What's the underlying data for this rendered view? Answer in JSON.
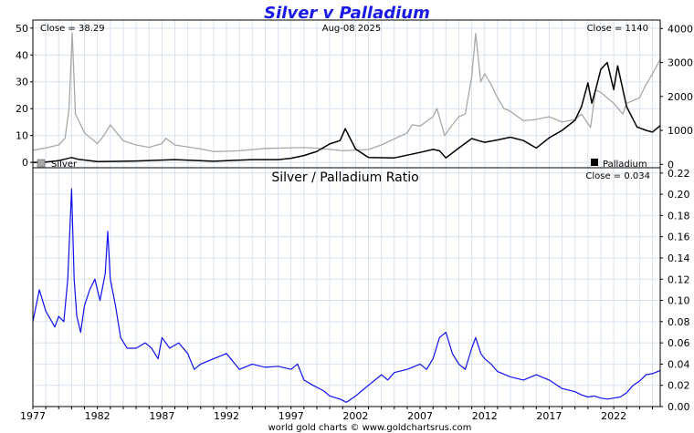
{
  "title": "Silver v Palladium",
  "footer": "world gold charts © www.goldchartsrus.com",
  "colors": {
    "title": "#1a1ae6",
    "silver": "#a8a8a8",
    "palladium": "#000000",
    "ratio": "#1010ee",
    "grid": "#d8e2ef"
  },
  "top_panel": {
    "silver_close_label": "Close = 38.29",
    "date_label": "Aug-08  2025",
    "palladium_close_label": "Close = 1140",
    "legend_silver": "Silver",
    "legend_palladium": "Palladium"
  },
  "bottom_panel": {
    "subtitle": "Silver  /  Palladium Ratio",
    "close_label": "Close = 0.034"
  },
  "chart_data": [
    {
      "type": "line",
      "title": "Silver v Palladium",
      "x_ticks": [
        "1977",
        "1982",
        "1987",
        "1992",
        "1997",
        "2002",
        "2007",
        "2012",
        "2017",
        "2022"
      ],
      "xlim": [
        1977,
        2025.6
      ],
      "y_left": {
        "ticks": [
          0,
          10,
          20,
          30,
          40,
          50
        ],
        "ylim": [
          -2,
          53
        ]
      },
      "y_right": {
        "ticks": [
          0,
          1000,
          2000,
          3000,
          4000
        ],
        "ylim": [
          -100,
          4250
        ]
      },
      "grid": true,
      "legend_placement": "bottom",
      "series": [
        {
          "name": "Silver",
          "axis": "left",
          "x": [
            1977,
            1978,
            1979,
            1979.5,
            1979.8,
            1980.05,
            1980.3,
            1980.6,
            1981,
            1982,
            1982.5,
            1983,
            1983.5,
            1984,
            1985,
            1986,
            1987,
            1987.3,
            1988,
            1990,
            1991,
            1993,
            1995,
            1998,
            1999,
            2001,
            2003,
            2004,
            2006,
            2006.4,
            2007,
            2008,
            2008.3,
            2008.9,
            2009.5,
            2010,
            2010.5,
            2011,
            2011.3,
            2011.7,
            2012,
            2012.5,
            2013,
            2013.5,
            2014,
            2015,
            2016,
            2017,
            2018,
            2019,
            2019.5,
            2020.2,
            2020.6,
            2021,
            2022,
            2022.7,
            2023,
            2024,
            2024.5,
            2025,
            2025.6
          ],
          "values": [
            4.5,
            5.4,
            6.5,
            9,
            20,
            48,
            18,
            15,
            11,
            7,
            10,
            14,
            11,
            8,
            6.5,
            5.6,
            7,
            9,
            6.5,
            5,
            4,
            4.3,
            5.2,
            5.5,
            5.3,
            4.3,
            4.8,
            6.5,
            11,
            14,
            13.5,
            17,
            20,
            10,
            14,
            17,
            18,
            32,
            48,
            30,
            33,
            29,
            24,
            20,
            19,
            15.5,
            16,
            17,
            15,
            16,
            18,
            13,
            27,
            26,
            22,
            18,
            22,
            24,
            29,
            33,
            38.29
          ]
        },
        {
          "name": "Palladium",
          "axis": "right",
          "x": [
            1977,
            1978,
            1979,
            1980,
            1980.5,
            1982,
            1985,
            1988,
            1991,
            1994,
            1996,
            1997,
            1998,
            1999,
            2000,
            2000.8,
            2001.2,
            2002,
            2003,
            2005,
            2007,
            2008,
            2008.5,
            2009,
            2010,
            2011,
            2011.5,
            2012,
            2013,
            2014,
            2015,
            2016,
            2017,
            2018,
            2019,
            2019.5,
            2020,
            2020.3,
            2020.6,
            2021,
            2021.5,
            2022,
            2022.3,
            2023,
            2023.8,
            2024.5,
            2025,
            2025.6
          ],
          "values": [
            55,
            70,
            110,
            200,
            150,
            80,
            100,
            140,
            90,
            140,
            140,
            180,
            260,
            380,
            600,
            700,
            1050,
            450,
            200,
            190,
            350,
            440,
            400,
            190,
            480,
            760,
            700,
            650,
            720,
            800,
            700,
            480,
            780,
            1000,
            1300,
            1700,
            2400,
            1800,
            2200,
            2800,
            3000,
            2200,
            2900,
            1700,
            1100,
            1000,
            950,
            1140
          ]
        }
      ]
    },
    {
      "type": "line",
      "title": "Silver  /  Palladium Ratio",
      "x_ticks": [
        "1977",
        "1982",
        "1987",
        "1992",
        "1997",
        "2002",
        "2007",
        "2012",
        "2017",
        "2022"
      ],
      "xlim": [
        1977,
        2025.6
      ],
      "y_right": {
        "ticks": [
          0.0,
          0.02,
          0.04,
          0.06,
          0.08,
          0.1,
          0.12,
          0.14,
          0.16,
          0.18,
          0.2,
          0.22
        ],
        "ylim": [
          0,
          0.225
        ]
      },
      "grid": true,
      "series": [
        {
          "name": "Silver / Palladium Ratio",
          "x": [
            1977,
            1977.5,
            1978,
            1978.7,
            1979,
            1979.4,
            1979.7,
            1980,
            1980.2,
            1980.4,
            1980.7,
            1981,
            1981.4,
            1981.8,
            1982.2,
            1982.6,
            1982.8,
            1983,
            1983.4,
            1983.8,
            1984.3,
            1985,
            1985.7,
            1986.2,
            1986.7,
            1987,
            1987.6,
            1988.3,
            1989,
            1989.5,
            1990,
            1991,
            1992,
            1993,
            1994,
            1995,
            1996,
            1997,
            1997.5,
            1998,
            1998.7,
            1999.5,
            2000,
            2000.8,
            2001.3,
            2002,
            2002.5,
            2003,
            2004,
            2004.5,
            2005,
            2006,
            2007,
            2007.5,
            2008,
            2008.5,
            2009,
            2009.5,
            2010,
            2010.5,
            2011,
            2011.3,
            2011.7,
            2012,
            2012.5,
            2013,
            2014,
            2015,
            2016,
            2017,
            2018,
            2019,
            2019.5,
            2020,
            2020.5,
            2021,
            2021.5,
            2022,
            2022.5,
            2023,
            2023.5,
            2024,
            2024.5,
            2025,
            2025.6
          ],
          "values": [
            0.08,
            0.11,
            0.09,
            0.075,
            0.085,
            0.08,
            0.12,
            0.205,
            0.12,
            0.085,
            0.07,
            0.095,
            0.11,
            0.12,
            0.1,
            0.125,
            0.165,
            0.12,
            0.095,
            0.065,
            0.055,
            0.055,
            0.06,
            0.055,
            0.045,
            0.065,
            0.055,
            0.06,
            0.05,
            0.035,
            0.04,
            0.045,
            0.05,
            0.035,
            0.04,
            0.037,
            0.038,
            0.035,
            0.04,
            0.025,
            0.02,
            0.015,
            0.01,
            0.007,
            0.004,
            0.01,
            0.015,
            0.02,
            0.03,
            0.025,
            0.032,
            0.035,
            0.04,
            0.035,
            0.045,
            0.065,
            0.07,
            0.05,
            0.04,
            0.035,
            0.055,
            0.065,
            0.05,
            0.045,
            0.04,
            0.033,
            0.028,
            0.025,
            0.03,
            0.025,
            0.017,
            0.014,
            0.011,
            0.009,
            0.01,
            0.008,
            0.007,
            0.008,
            0.009,
            0.013,
            0.02,
            0.024,
            0.03,
            0.031,
            0.034
          ]
        }
      ]
    }
  ]
}
